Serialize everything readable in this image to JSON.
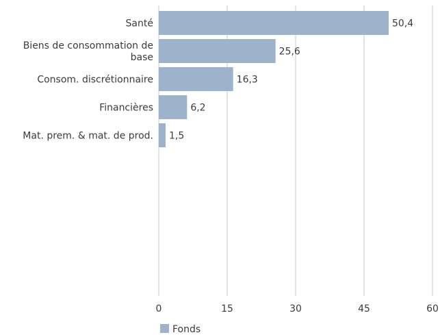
{
  "chart_data": {
    "type": "bar",
    "orientation": "horizontal",
    "categories": [
      [
        "Santé"
      ],
      [
        "Biens de consommation de",
        "base"
      ],
      [
        "Consom. discrétionnaire"
      ],
      [
        "Financières"
      ],
      [
        "Mat. prem. & mat. de prod."
      ]
    ],
    "series": [
      {
        "name": "Fonds",
        "values": [
          50.4,
          25.6,
          16.3,
          6.2,
          1.5
        ],
        "labels": [
          "50,4",
          "25,6",
          "16,3",
          "6,2",
          "1,5"
        ]
      }
    ],
    "xlim": [
      0,
      60
    ],
    "xticks": [
      "0",
      "15",
      "30",
      "45",
      "60"
    ],
    "grid": "vertical",
    "legend": "bottom",
    "colors": {
      "bar": "#9db3cc",
      "grid": "#c8c8c8",
      "text": "#3a3a3a"
    }
  }
}
